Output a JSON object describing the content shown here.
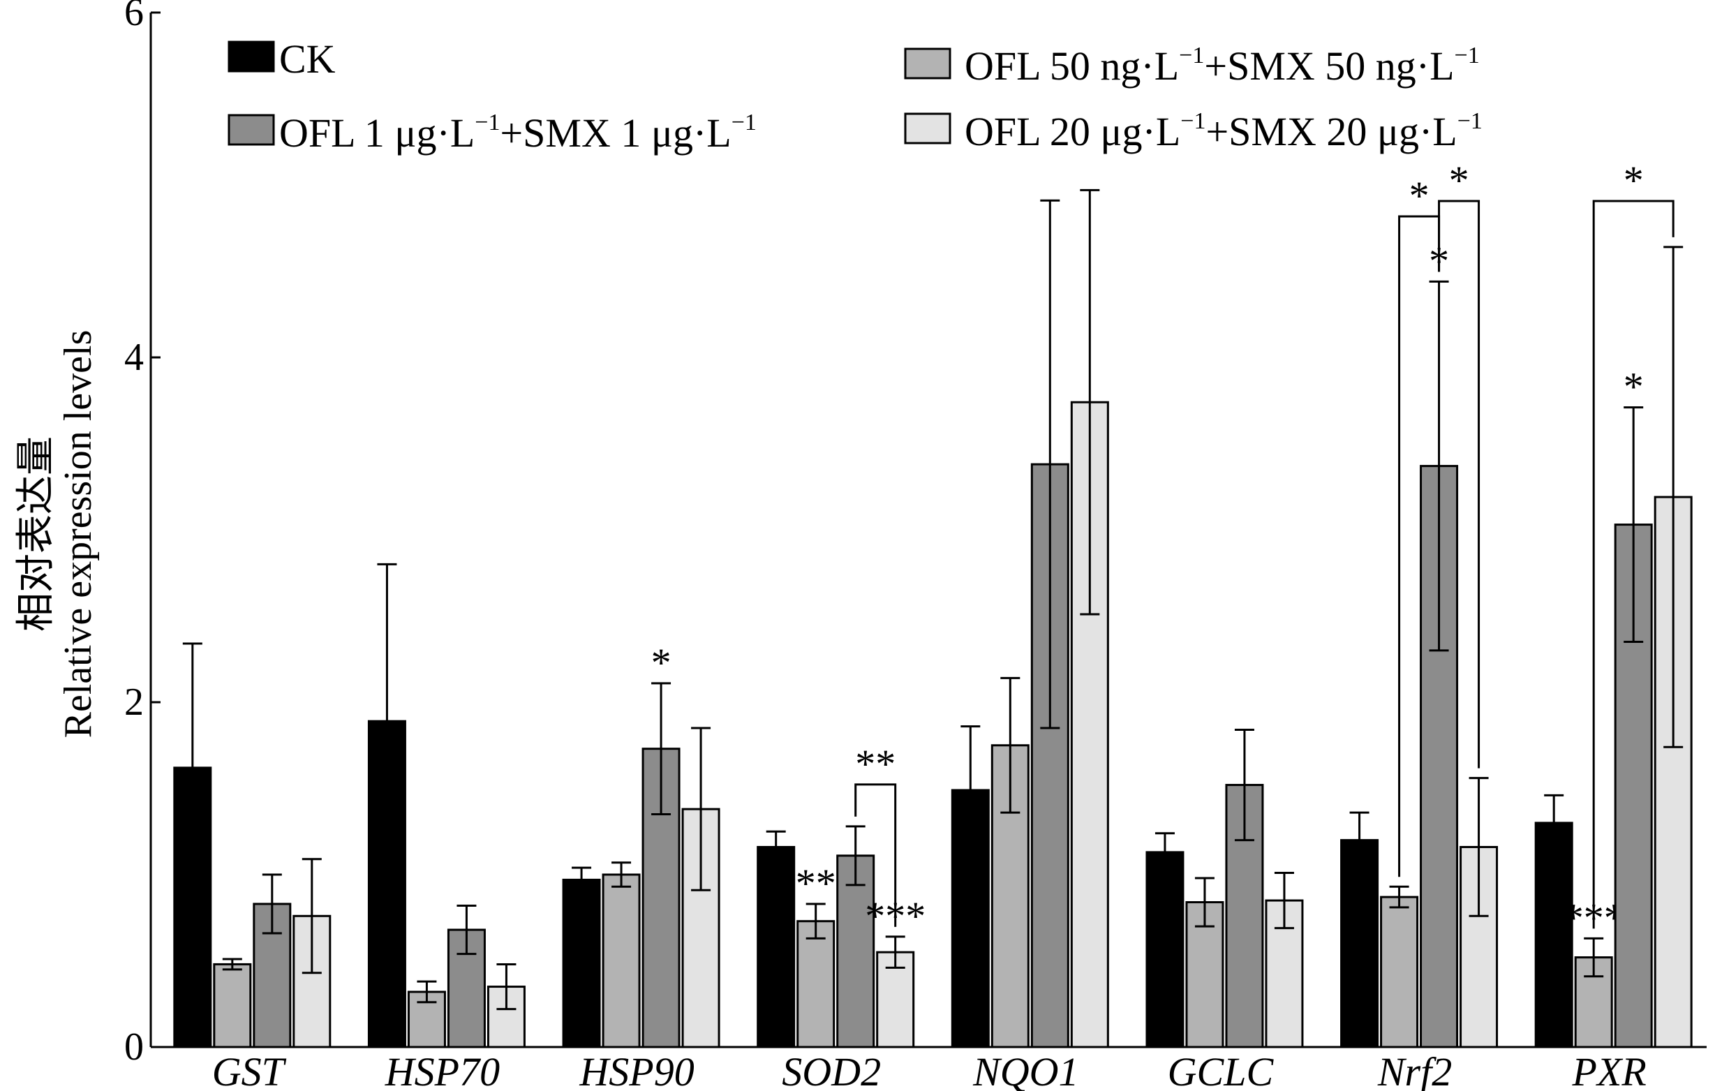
{
  "chart_data": {
    "type": "bar",
    "ylabel_line1": "相对表达量",
    "ylabel_line2": "Relative expression levels",
    "ylim": [
      0,
      6
    ],
    "yticks": [
      "0",
      "2",
      "4",
      "6"
    ],
    "categories": [
      "GST",
      "HSP70",
      "HSP90",
      "SOD2",
      "NQO1",
      "GCLC",
      "Nrf2",
      "PXR"
    ],
    "legend_position": "top",
    "series": [
      {
        "name": "CK",
        "legend_main": "CK",
        "color": "#000000",
        "values": [
          1.62,
          1.89,
          0.97,
          1.16,
          1.49,
          1.13,
          1.2,
          1.3
        ],
        "errors": [
          0.72,
          0.91,
          0.07,
          0.09,
          0.37,
          0.11,
          0.16,
          0.16
        ],
        "sig": [
          "",
          "",
          "",
          "",
          "",
          "",
          "",
          ""
        ]
      },
      {
        "name": "OFL 50 ng·L⁻¹+SMX 50 ng·L⁻¹",
        "legend_main": "OFL 50 ng·L",
        "legend_sup1": "−1",
        "legend_mid": "+SMX 50 ng·L",
        "legend_sup2": "−1",
        "color": "#b3b3b3",
        "values": [
          0.48,
          0.32,
          1.0,
          0.73,
          1.75,
          0.84,
          0.87,
          0.52
        ],
        "errors": [
          0.03,
          0.06,
          0.07,
          0.1,
          0.39,
          0.14,
          0.06,
          0.11
        ],
        "sig": [
          "",
          "",
          "",
          "**",
          "",
          "",
          "",
          "***"
        ]
      },
      {
        "name": "OFL 1 μg·L⁻¹+SMX 1 μg·L⁻¹",
        "legend_main": "OFL 1 μg·L",
        "legend_sup1": "−1",
        "legend_mid": "+SMX 1 μg·L",
        "legend_sup2": "−1",
        "color": "#8c8c8c",
        "values": [
          0.83,
          0.68,
          1.73,
          1.11,
          3.38,
          1.52,
          3.37,
          3.03
        ],
        "errors": [
          0.17,
          0.14,
          0.38,
          0.17,
          1.53,
          0.32,
          1.07,
          0.68
        ],
        "sig": [
          "",
          "",
          "*",
          "",
          "",
          "",
          "*",
          "*"
        ]
      },
      {
        "name": "OFL 20 μg·L⁻¹+SMX 20 μg·L⁻¹",
        "legend_main": "OFL 20 μg·L",
        "legend_sup1": "−1",
        "legend_mid": "+SMX 20 μg·L",
        "legend_sup2": "−1",
        "color": "#e3e3e3",
        "values": [
          0.76,
          0.35,
          1.38,
          0.55,
          3.74,
          0.85,
          1.16,
          3.19
        ],
        "errors": [
          0.33,
          0.13,
          0.47,
          0.09,
          1.23,
          0.16,
          0.4,
          1.45
        ],
        "sig": [
          "",
          "",
          "",
          "***",
          "",
          "",
          "",
          ""
        ]
      }
    ],
    "brackets": [
      {
        "category": "SOD2",
        "from_series": 2,
        "to_series": 3,
        "label": "**"
      },
      {
        "category": "Nrf2",
        "from_series": 1,
        "to_series": 2,
        "label": "*"
      },
      {
        "category": "Nrf2",
        "from_series": 2,
        "to_series": 3,
        "label": "*"
      },
      {
        "category": "PXR",
        "from_series": 1,
        "to_series": 3,
        "label": "*"
      }
    ]
  }
}
